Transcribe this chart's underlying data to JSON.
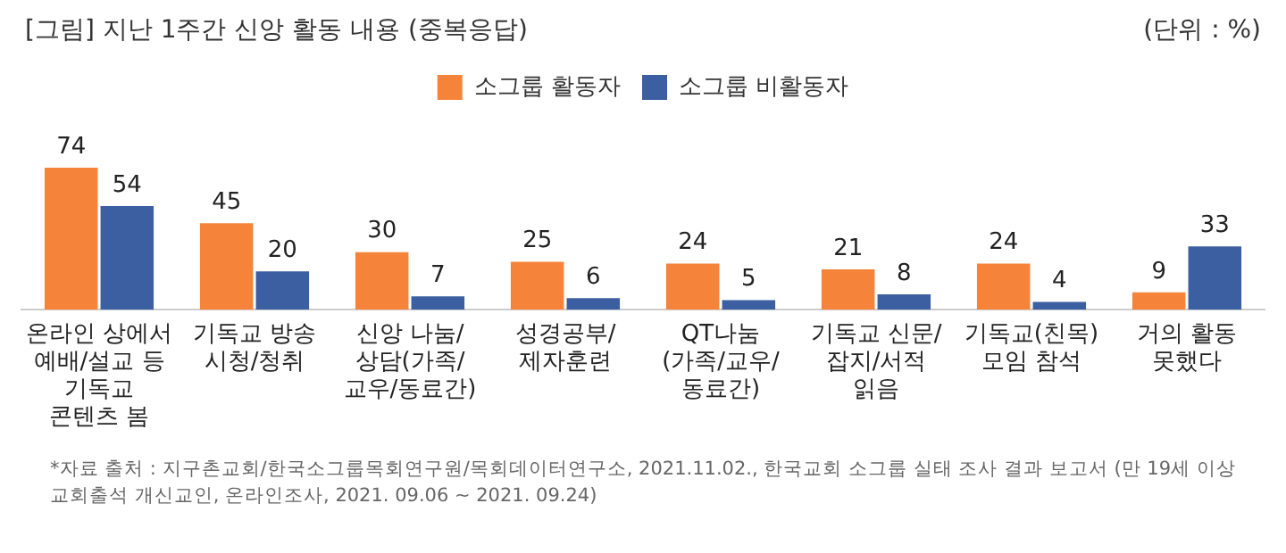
{
  "chart_data": {
    "type": "bar",
    "title": "[그림] 지난 1주간 신앙 활동 내용 (중복응답)",
    "categories": [
      "온라인 상에서\n예배/설교 등\n기독교\n콘텐츠 봄",
      "기독교 방송\n시청/청취",
      "신앙 나눔/\n상담(가족/\n교우/동료간)",
      "성경공부/\n제자훈련",
      "QT나눔\n(가족/교우/\n동료간)",
      "기독교 신문/\n잡지/서적\n읽음",
      "기독교(친목)\n모임 참석",
      "거의 활동\n못했다"
    ],
    "series": [
      {
        "name": "소그룹 활동자",
        "color": "#f5843a",
        "values": [
          74,
          45,
          30,
          25,
          24,
          21,
          24,
          9
        ]
      },
      {
        "name": "소그룹 비활동자",
        "color": "#3b5fa0",
        "values": [
          54,
          20,
          7,
          6,
          5,
          8,
          4,
          33
        ]
      }
    ],
    "data_labels": true,
    "legend": "top",
    "grid": false,
    "annotations": [
      "(단위 : %)",
      "*자료 출처 : 지구촌교회/한국소그룹목회연구원/목회데이터연구소, 2021.11.02., 한국교회 소그룹 실태 조사 결과 보고서 (만 19세 이상 교회출석 개신교인, 온라인조사, 2021. 09.06 ~ 2021. 09.24)"
    ]
  }
}
